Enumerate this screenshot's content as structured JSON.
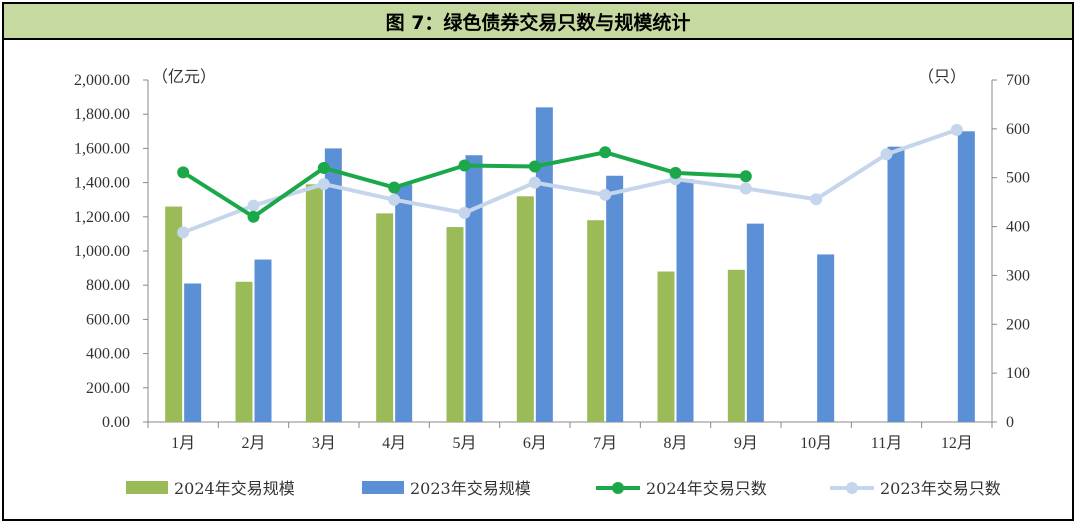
{
  "title": "图 7：绿色债券交易只数与规模统计",
  "chart_data": {
    "type": "bar+line",
    "categories": [
      "1月",
      "2月",
      "3月",
      "4月",
      "5月",
      "6月",
      "7月",
      "8月",
      "9月",
      "10月",
      "11月",
      "12月"
    ],
    "y_left": {
      "unit": "（亿元）",
      "ylim": [
        0,
        2000
      ],
      "ticks": [
        "0.00",
        "200.00",
        "400.00",
        "600.00",
        "800.00",
        "1,000.00",
        "1,200.00",
        "1,400.00",
        "1,600.00",
        "1,800.00",
        "2,000.00"
      ]
    },
    "y_right": {
      "unit": "（只）",
      "ylim": [
        0,
        700
      ],
      "ticks": [
        "0",
        "100",
        "200",
        "300",
        "400",
        "500",
        "600",
        "700"
      ]
    },
    "bar_series": [
      {
        "name": "2024年交易规模",
        "color": "#9bbb59",
        "values": [
          1260,
          820,
          1390,
          1220,
          1140,
          1320,
          1180,
          880,
          890,
          null,
          null,
          null
        ]
      },
      {
        "name": "2023年交易规模",
        "color": "#5b8fd6",
        "values": [
          810,
          950,
          1600,
          1390,
          1560,
          1840,
          1440,
          1420,
          1160,
          980,
          1610,
          1700
        ]
      }
    ],
    "line_series": [
      {
        "name": "2024年交易只数",
        "color": "#1aa84a",
        "values": [
          511,
          420,
          520,
          480,
          525,
          523,
          552,
          510,
          503,
          null,
          null,
          null
        ]
      },
      {
        "name": "2023年交易只数",
        "color": "#c5d5ec",
        "values": [
          388,
          443,
          487,
          455,
          428,
          490,
          465,
          497,
          478,
          456,
          548,
          598
        ]
      }
    ],
    "legend_position": "bottom",
    "grid": false
  }
}
